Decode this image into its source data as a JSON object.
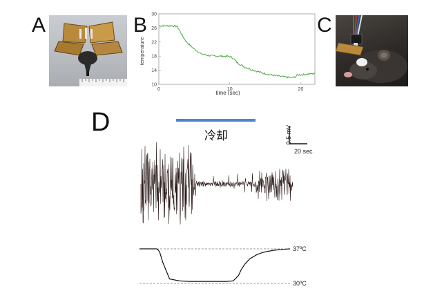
{
  "panels": {
    "a": {
      "letter": "A",
      "description_icon": "cooling-device-photo"
    },
    "b": {
      "letter": "B"
    },
    "c": {
      "letter": "C",
      "description_icon": "mouse-with-device-photo"
    },
    "d": {
      "letter": "D"
    }
  },
  "chart_data": [
    {
      "type": "line",
      "title": "",
      "xlabel": "time (sec)",
      "ylabel": "temperature",
      "xlim": [
        0,
        22
      ],
      "ylim": [
        10,
        30
      ],
      "x_ticks": [
        0,
        10,
        20
      ],
      "y_ticks": [
        10,
        14,
        18,
        22,
        26,
        30
      ],
      "grid": false,
      "series": [
        {
          "color": "#4caf3f",
          "x": [
            0,
            1,
            2,
            2.6,
            3,
            3.5,
            4,
            5,
            6,
            7,
            8,
            9,
            10,
            10.5,
            11,
            11.5,
            12,
            13,
            14,
            15,
            16,
            17,
            18,
            18.8,
            19.2,
            19.6,
            20,
            21,
            22
          ],
          "y": [
            26.6,
            26.6,
            26.6,
            26.4,
            25,
            23.2,
            21.8,
            20,
            18.6,
            18.2,
            18,
            18,
            17.9,
            17.4,
            16.2,
            15.6,
            15,
            14.2,
            13.6,
            13,
            12.6,
            12.3,
            12,
            11.9,
            12.1,
            12.7,
            12.7,
            12.9,
            13.1
          ]
        }
      ]
    },
    {
      "type": "line",
      "title": "",
      "annotation": "冷却",
      "scale_bar": {
        "y_label": "0.5 mV",
        "x_label": "20 sec"
      },
      "temperature_labels": [
        "37ºC",
        "30ºC"
      ],
      "series": [
        {
          "name": "temperature",
          "color": "#111111",
          "x": [
            0,
            25,
            27,
            30,
            35,
            45,
            60,
            75,
            90,
            110,
            130,
            140,
            148,
            152,
            158,
            165,
            175,
            185,
            200,
            215,
            225
          ],
          "y": [
            37,
            37,
            36.9,
            36.4,
            34.2,
            30.9,
            30.5,
            30.4,
            30.4,
            30.4,
            30.4,
            30.5,
            31.6,
            32.8,
            34,
            35,
            35.8,
            36.3,
            36.7,
            36.9,
            37
          ]
        }
      ]
    }
  ]
}
